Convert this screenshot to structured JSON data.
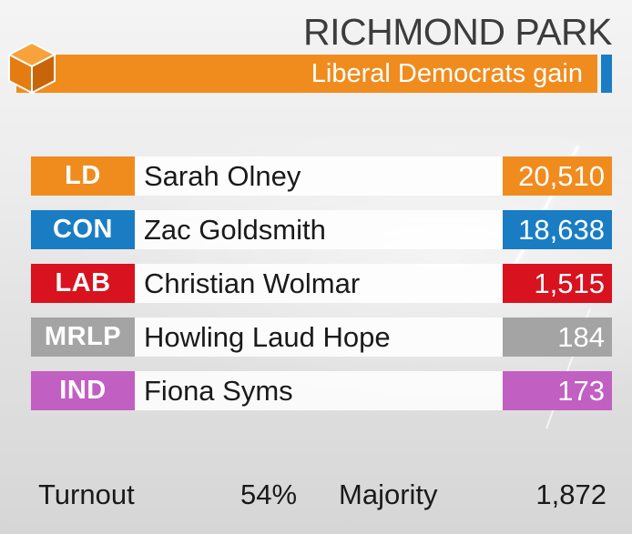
{
  "constituency": "RICHMOND PARK",
  "result_banner": "Liberal Democrats gain",
  "colors": {
    "banner": "#f08c1e",
    "banner_accent": "#1a7dc4"
  },
  "candidates": [
    {
      "party": "LD",
      "name": "Sarah Olney",
      "votes": "20,510",
      "color": "#f08c1e"
    },
    {
      "party": "CON",
      "name": "Zac Goldsmith",
      "votes": "18,638",
      "color": "#1a7dc4"
    },
    {
      "party": "LAB",
      "name": "Christian Wolmar",
      "votes": "1,515",
      "color": "#d8121e"
    },
    {
      "party": "MRLP",
      "name": "Howling Laud Hope",
      "votes": "184",
      "color": "#a4a4a4"
    },
    {
      "party": "IND",
      "name": "Fiona Syms",
      "votes": "173",
      "color": "#c25fc2"
    }
  ],
  "summary": {
    "turnout_label": "Turnout",
    "turnout_value": "54%",
    "majority_label": "Majority",
    "majority_value": "1,872"
  }
}
